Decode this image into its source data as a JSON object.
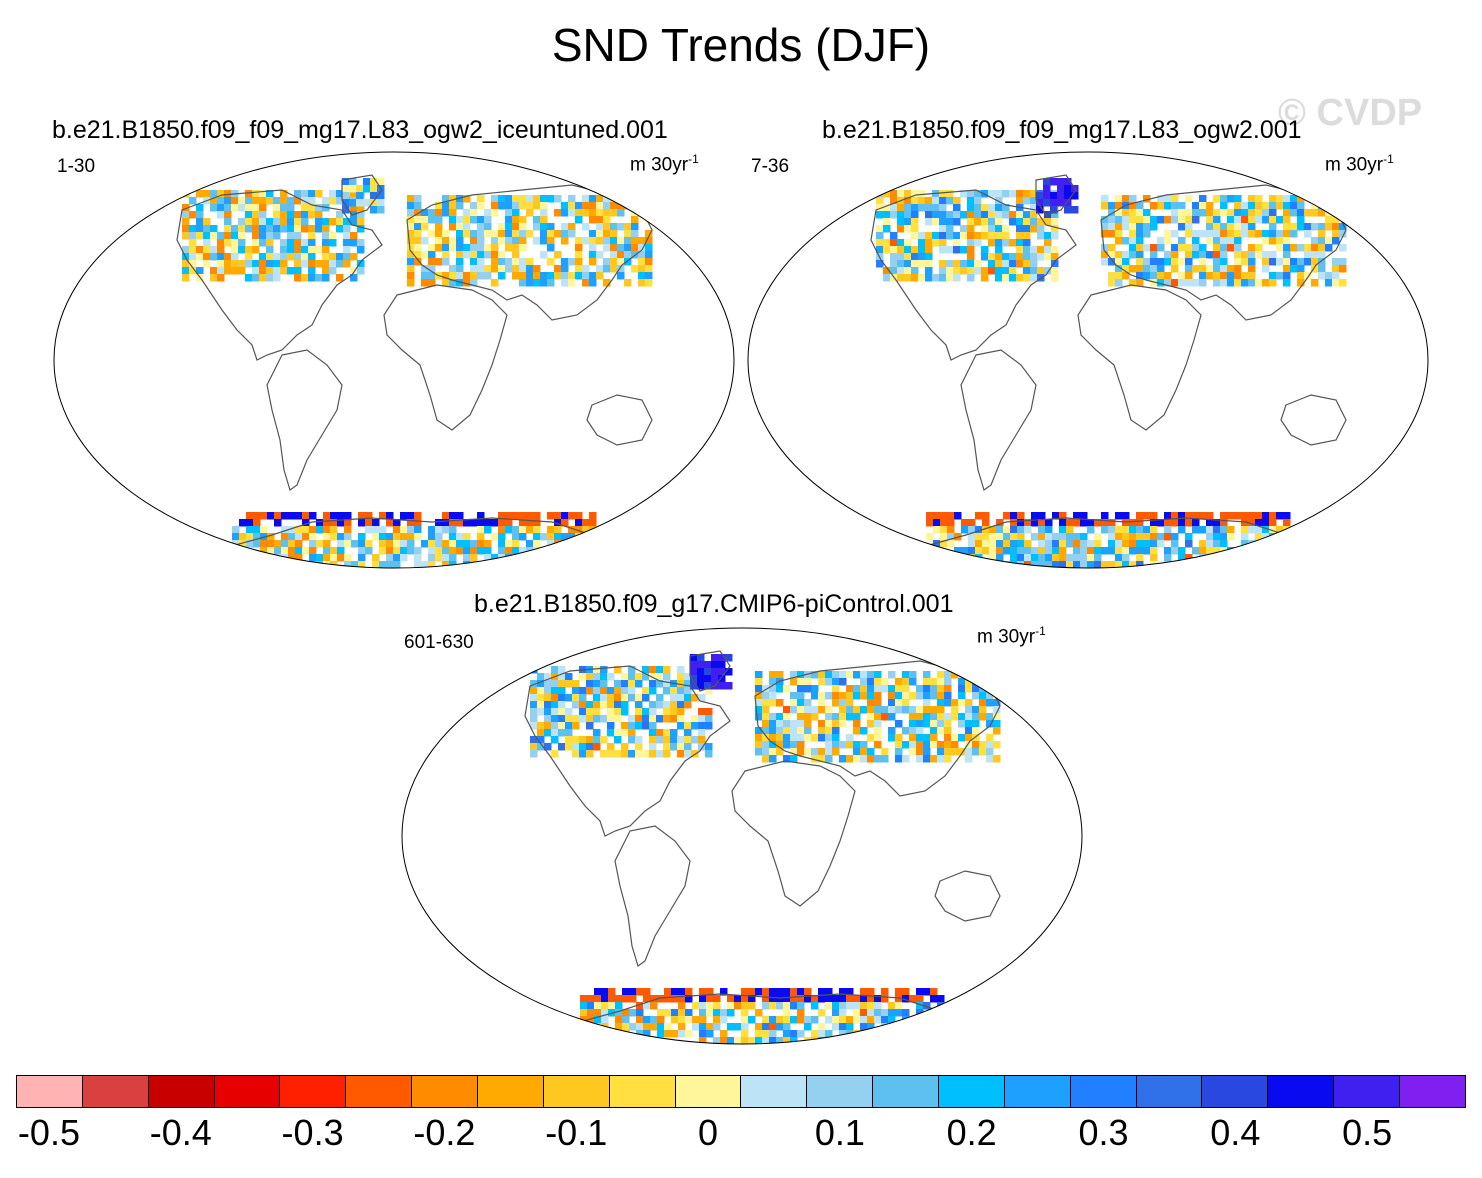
{
  "title": "SND Trends (DJF)",
  "watermark": "© CVDP",
  "panels": [
    {
      "title": "b.e21.B1850.f09_f09_mg17.L83_ogw2_iceuntuned.001",
      "years": "1-30",
      "units": "m 30yr",
      "units_exp": "-1"
    },
    {
      "title": "b.e21.B1850.f09_f09_mg17.L83_ogw2.001",
      "years": "7-36",
      "units": "m 30yr",
      "units_exp": "-1"
    },
    {
      "title": "b.e21.B1850.f09_g17.CMIP6-piControl.001",
      "years": "601-630",
      "units": "m 30yr",
      "units_exp": "-1"
    }
  ],
  "chart_data": {
    "type": "heatmap",
    "title": "SND Trends (DJF)",
    "variable": "SND",
    "season": "DJF",
    "units": "m 30yr-1",
    "colorbar": {
      "levels": [
        -0.5,
        -0.45,
        -0.4,
        -0.35,
        -0.3,
        -0.25,
        -0.2,
        -0.15,
        -0.1,
        -0.05,
        0,
        0.05,
        0.1,
        0.15,
        0.2,
        0.25,
        0.3,
        0.35,
        0.4,
        0.45,
        0.5
      ],
      "labels": [
        "-0.5",
        "-0.4",
        "-0.3",
        "-0.2",
        "-0.1",
        "0",
        "0.1",
        "0.2",
        "0.3",
        "0.4",
        "0.5"
      ],
      "colors": [
        "#ffb3b3",
        "#d94040",
        "#c80000",
        "#e60000",
        "#ff2000",
        "#ff5a00",
        "#ff8c00",
        "#ffaa00",
        "#ffc820",
        "#ffe040",
        "#fff59a",
        "#bde3f7",
        "#96d0f0",
        "#5ec0ee",
        "#00bfff",
        "#1ea0ff",
        "#2080ff",
        "#3070e8",
        "#2848e0",
        "#0a0af0",
        "#4020f0",
        "#8020f0"
      ]
    },
    "series": [
      {
        "name": "b.e21.B1850.f09_f09_mg17.L83_ogw2_iceuntuned.001",
        "years": "1-30"
      },
      {
        "name": "b.e21.B1850.f09_f09_mg17.L83_ogw2.001",
        "years": "7-36"
      },
      {
        "name": "b.e21.B1850.f09_g17.CMIP6-piControl.001",
        "years": "601-630"
      }
    ]
  }
}
